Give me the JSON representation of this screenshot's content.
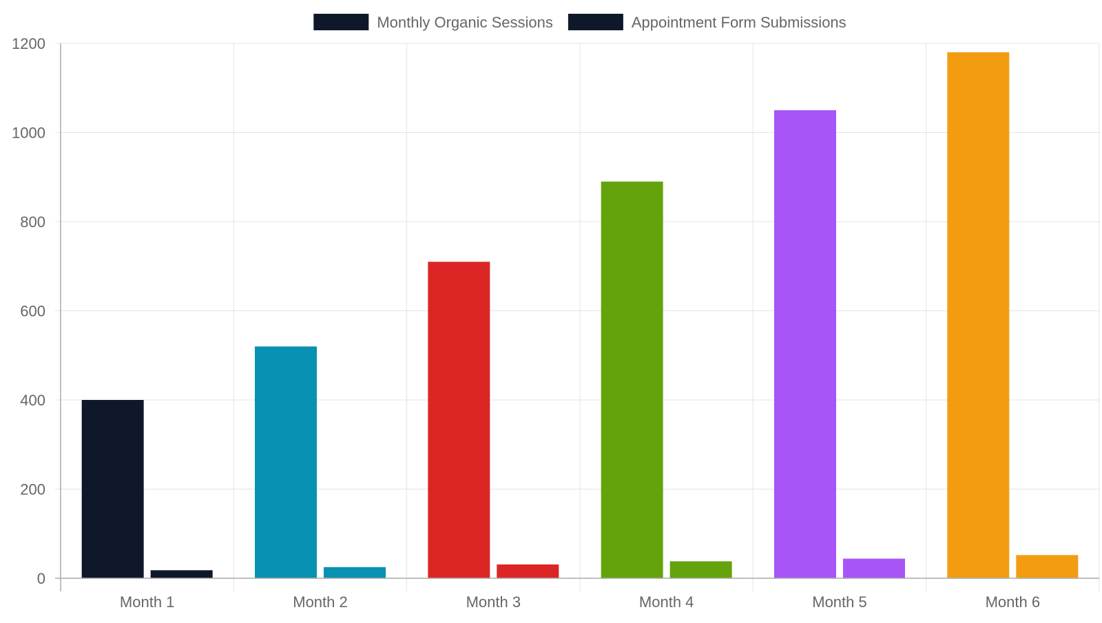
{
  "chart_data": {
    "type": "bar",
    "categories": [
      "Month 1",
      "Month 2",
      "Month 3",
      "Month 4",
      "Month 5",
      "Month 6"
    ],
    "series": [
      {
        "name": "Monthly Organic Sessions",
        "legend_color": "#0f172a",
        "values": [
          400,
          520,
          710,
          890,
          1050,
          1180
        ]
      },
      {
        "name": "Appointment Form Submissions",
        "legend_color": "#0f172a",
        "values": [
          18,
          25,
          31,
          38,
          44,
          52
        ]
      }
    ],
    "bar_colors": [
      "#0f172a",
      "#0891b2",
      "#dc2626",
      "#65a30d",
      "#a855f7",
      "#f39c12"
    ],
    "ylim": [
      0,
      1200
    ],
    "yticks": [
      0,
      200,
      400,
      600,
      800,
      1000,
      1200
    ],
    "xlabel": "",
    "ylabel": "",
    "title": "",
    "grid": true,
    "legend_position": "top-center"
  }
}
